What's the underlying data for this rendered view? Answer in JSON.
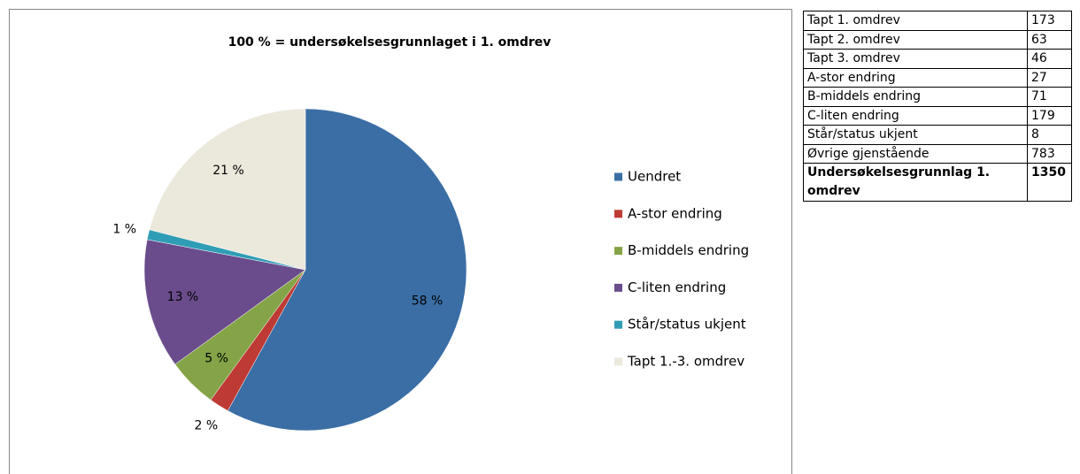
{
  "chart_data": {
    "type": "pie",
    "title": "100 % = undersøkelsesgrunnlaget i 1. omdrev",
    "categories": [
      "Uendret",
      "A-stor endring",
      "B-middels endring",
      "C-liten endring",
      "Står/status ukjent",
      "Tapt 1.-3. omdrev"
    ],
    "values": [
      58,
      2,
      5,
      13,
      1,
      21
    ],
    "value_labels": [
      "58 %",
      "2 %",
      "5 %",
      "13 %",
      "1 %",
      "21 %"
    ],
    "colors": [
      "#3a6ea5",
      "#be3a34",
      "#84a447",
      "#6a4c8c",
      "#2f9db5",
      "#ebe8dc"
    ],
    "legend": "right"
  },
  "table": {
    "rows": [
      [
        "Tapt 1. omdrev",
        "173"
      ],
      [
        "Tapt 2. omdrev",
        "63"
      ],
      [
        "Tapt 3. omdrev",
        "46"
      ],
      [
        "A-stor endring",
        "27"
      ],
      [
        "B-middels endring",
        "71"
      ],
      [
        "C-liten endring",
        "179"
      ],
      [
        "Står/status ukjent",
        "8"
      ],
      [
        "Øvrige gjenstående",
        "783"
      ],
      [
        "Undersøkelsesgrunnlag 1. omdrev",
        "1350"
      ]
    ]
  }
}
